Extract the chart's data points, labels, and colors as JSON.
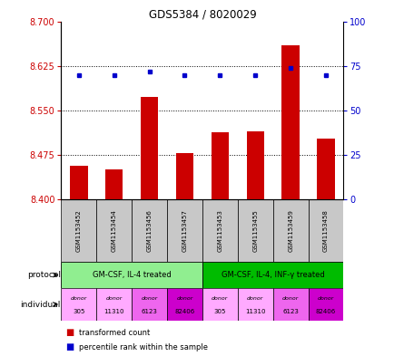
{
  "title": "GDS5384 / 8020029",
  "samples": [
    "GSM1153452",
    "GSM1153454",
    "GSM1153456",
    "GSM1153457",
    "GSM1153453",
    "GSM1153455",
    "GSM1153459",
    "GSM1153458"
  ],
  "transformed_counts": [
    8.457,
    8.45,
    8.572,
    8.478,
    8.513,
    8.515,
    8.66,
    8.503
  ],
  "percentile_ranks": [
    70,
    70,
    72,
    70,
    70,
    70,
    74,
    70
  ],
  "ylim_left": [
    8.4,
    8.7
  ],
  "ylim_right": [
    0,
    100
  ],
  "yticks_left": [
    8.4,
    8.475,
    8.55,
    8.625,
    8.7
  ],
  "yticks_right": [
    0,
    25,
    50,
    75,
    100
  ],
  "protocols": [
    {
      "label": "GM-CSF, IL-4 treated",
      "start": 0,
      "end": 4,
      "color": "#90EE90"
    },
    {
      "label": "GM-CSF, IL-4, INF-γ treated",
      "start": 4,
      "end": 8,
      "color": "#00BB00"
    }
  ],
  "ind_data": [
    {
      "label_top": "donor",
      "label_bot": "305",
      "col": 0,
      "color": "#FFAAFF"
    },
    {
      "label_top": "donor",
      "label_bot": "11310",
      "col": 1,
      "color": "#FFAAFF"
    },
    {
      "label_top": "donor",
      "label_bot": "6123",
      "col": 2,
      "color": "#EE66EE"
    },
    {
      "label_top": "donor",
      "label_bot": "82406",
      "col": 3,
      "color": "#CC00CC"
    },
    {
      "label_top": "donor",
      "label_bot": "305",
      "col": 4,
      "color": "#FFAAFF"
    },
    {
      "label_top": "donor",
      "label_bot": "11310",
      "col": 5,
      "color": "#FFAAFF"
    },
    {
      "label_top": "donor",
      "label_bot": "6123",
      "col": 6,
      "color": "#EE66EE"
    },
    {
      "label_top": "donor",
      "label_bot": "82406",
      "col": 7,
      "color": "#CC00CC"
    }
  ],
  "bar_color": "#CC0000",
  "dot_color": "#0000CC",
  "bar_width": 0.5,
  "tick_color_left": "#CC0000",
  "tick_color_right": "#0000CC",
  "sample_bg_color": "#C8C8C8",
  "legend_bar_label": "transformed count",
  "legend_dot_label": "percentile rank within the sample"
}
